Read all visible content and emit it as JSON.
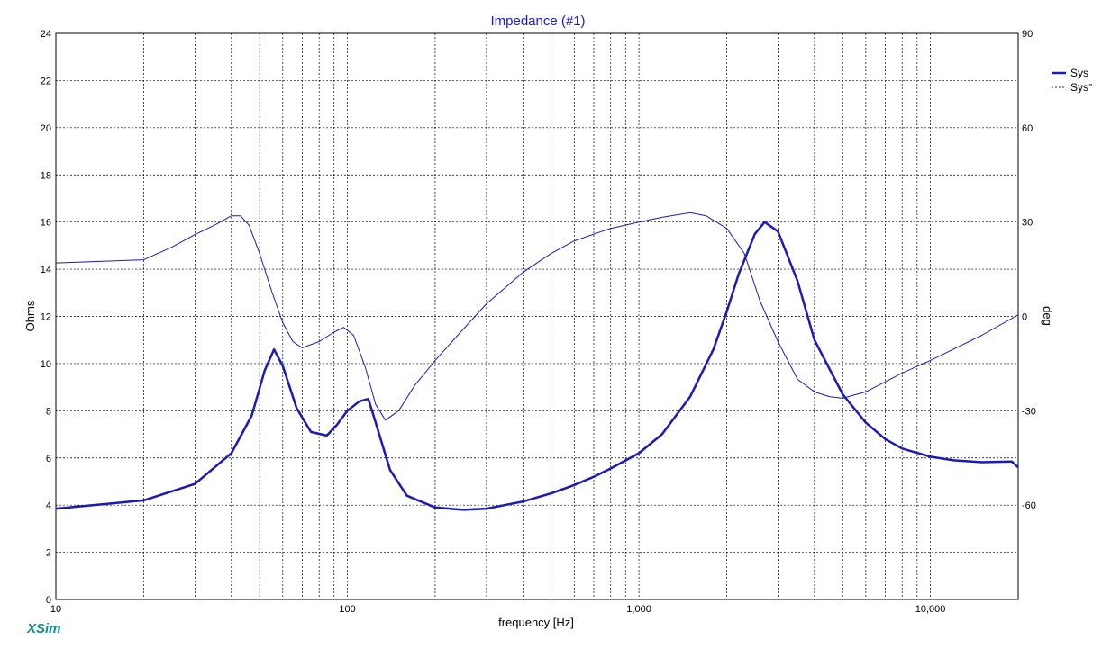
{
  "app_brand": "XSim",
  "colors": {
    "series": "#1a1ab4",
    "grid": "#000000",
    "title": "#1a1ad0",
    "brand": "#1a8a8a"
  },
  "chart_data": {
    "type": "line",
    "title": "Impedance (#1)",
    "xlabel": "frequency [Hz]",
    "ylabel": "Ohms",
    "y2label": "deg",
    "xscale": "log",
    "xlim": [
      10,
      20000
    ],
    "ylim": [
      0,
      24
    ],
    "y2lim": [
      -90,
      90
    ],
    "grid": true,
    "legend_position": "top-right",
    "x_ticks": [
      10,
      100,
      1000,
      10000
    ],
    "x_tick_labels": [
      "10",
      "100",
      "1,000",
      "10,000"
    ],
    "y_ticks": [
      0,
      2,
      4,
      6,
      8,
      10,
      12,
      14,
      16,
      18,
      20,
      22,
      24
    ],
    "y_tick_labels": [
      "0",
      "2",
      "4",
      "6",
      "8",
      "10",
      "12",
      "14",
      "16",
      "18",
      "20",
      "22",
      "24"
    ],
    "y2_ticks": [
      -60,
      -30,
      0,
      30,
      60,
      90
    ],
    "y2_tick_labels": [
      "-60",
      "-30",
      "0",
      "30",
      "60",
      "90"
    ],
    "series": [
      {
        "name": "Sys",
        "axis": "left",
        "style": "solid",
        "x": [
          10,
          20,
          30,
          40,
          47,
          52,
          56,
          60,
          67,
          75,
          85,
          92,
          100,
          110,
          118,
          125,
          140,
          160,
          200,
          250,
          300,
          400,
          500,
          600,
          700,
          800,
          1000,
          1200,
          1500,
          1800,
          2000,
          2200,
          2500,
          2700,
          3000,
          3500,
          4000,
          5000,
          6000,
          7000,
          8000,
          10000,
          12000,
          15000,
          19000,
          20000
        ],
        "y": [
          3.85,
          4.2,
          4.9,
          6.2,
          7.8,
          9.7,
          10.6,
          9.9,
          8.1,
          7.1,
          6.95,
          7.4,
          8.0,
          8.4,
          8.5,
          7.5,
          5.5,
          4.4,
          3.9,
          3.8,
          3.85,
          4.15,
          4.5,
          4.85,
          5.2,
          5.55,
          6.2,
          7.0,
          8.6,
          10.6,
          12.2,
          13.8,
          15.5,
          16.0,
          15.6,
          13.5,
          11.0,
          8.7,
          7.5,
          6.8,
          6.4,
          6.05,
          5.9,
          5.82,
          5.85,
          5.6
        ]
      },
      {
        "name": "Sys°",
        "axis": "right",
        "style": "dashed",
        "x": [
          10,
          20,
          25,
          30,
          35,
          40,
          43,
          46,
          50,
          55,
          60,
          65,
          70,
          80,
          90,
          97,
          105,
          115,
          125,
          135,
          150,
          170,
          200,
          250,
          300,
          400,
          500,
          600,
          800,
          1000,
          1200,
          1500,
          1700,
          2000,
          2300,
          2600,
          3000,
          3500,
          4000,
          4500,
          5000,
          6000,
          8000,
          10000,
          15000,
          20000
        ],
        "y": [
          17,
          18,
          22,
          26,
          29,
          32,
          32,
          29,
          20,
          8,
          -2,
          -8,
          -10,
          -8,
          -5,
          -3.5,
          -6,
          -16,
          -28,
          -33,
          -30,
          -22,
          -14,
          -4,
          4,
          14,
          20,
          24,
          28,
          30,
          31.5,
          33,
          32,
          28,
          20,
          5,
          -8,
          -20,
          -24,
          -25.5,
          -26,
          -24,
          -18,
          -14,
          -6,
          0.5
        ]
      }
    ]
  }
}
